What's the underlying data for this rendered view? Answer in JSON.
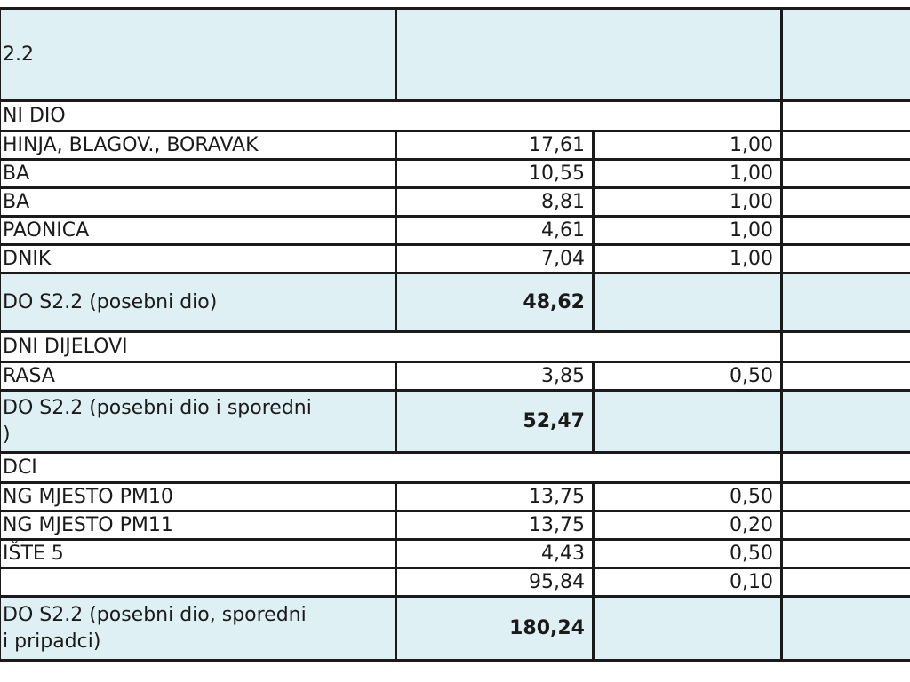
{
  "header": {
    "title": "2.2"
  },
  "sections": {
    "posebni": "NI DIO",
    "sporedni": "DNI DIJELOVI",
    "pripadci": "DCI"
  },
  "rows_posebni": [
    {
      "label": "HINJA, BLAGOV., BORAVAK",
      "area": "17,61",
      "coef": "1,00"
    },
    {
      "label": "BA",
      "area": "10,55",
      "coef": "1,00"
    },
    {
      "label": "BA",
      "area": "8,81",
      "coef": "1,00"
    },
    {
      "label": "PAONICA",
      "area": "4,61",
      "coef": "1,00"
    },
    {
      "label": "DNIK",
      "area": "7,04",
      "coef": "1,00"
    }
  ],
  "subtotal1": {
    "label": "DO S2.2 (posebni dio)",
    "value": "48,62"
  },
  "rows_sporedni": [
    {
      "label": "RASA",
      "area": "3,85",
      "coef": "0,50"
    }
  ],
  "subtotal2": {
    "label": "DO S2.2 (posebni dio i sporedni",
    "label2": ")",
    "value": "52,47"
  },
  "rows_pripadci": [
    {
      "label": "NG MJESTO PM10",
      "area": "13,75",
      "coef": "0,50"
    },
    {
      "label": "NG MJESTO PM11",
      "area": "13,75",
      "coef": "0,20"
    },
    {
      "label": "IŠTE 5",
      "area": "4,43",
      "coef": "0,50"
    },
    {
      "label": "",
      "area": "95,84",
      "coef": "0,10"
    }
  ],
  "total": {
    "label": "DO S2.2 (posebni dio, sporedni",
    "label2": "i pripadci)",
    "value": "180,24"
  }
}
